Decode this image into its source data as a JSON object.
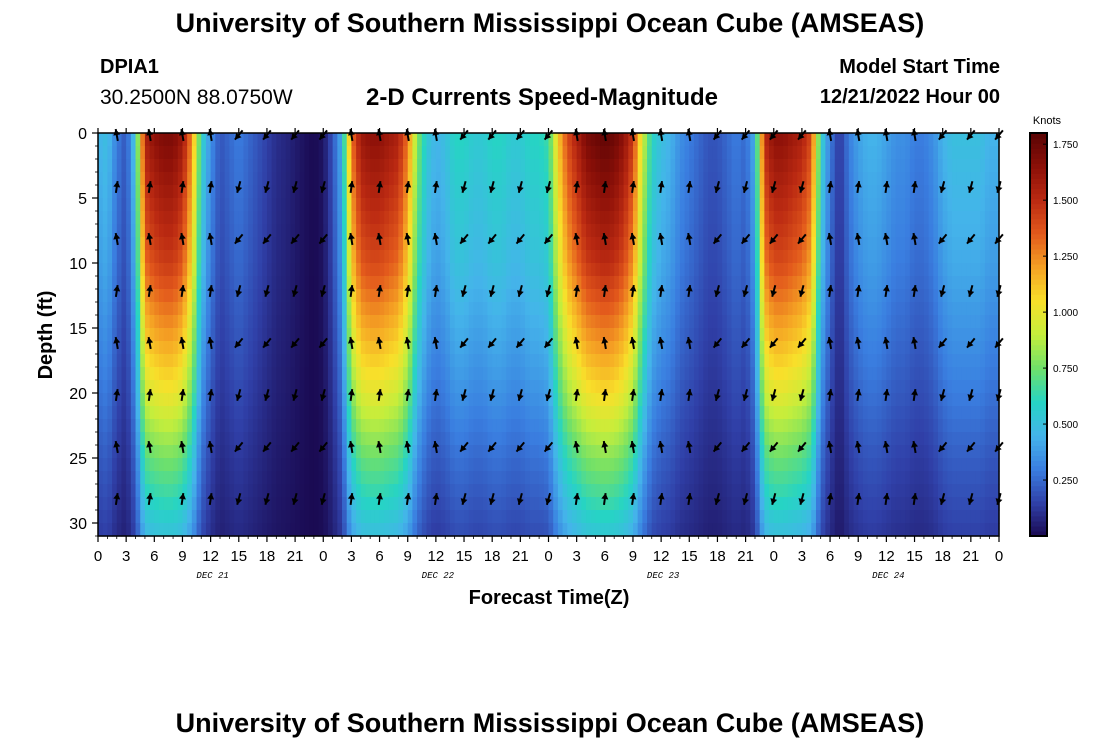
{
  "header": {
    "title": "University of Southern Mississippi Ocean Cube (AMSEAS)",
    "station_id": "DPIA1",
    "coordinates": "30.2500N  88.0750W",
    "plot_title": "2-D Currents Speed-Magnitude",
    "model_start_label": "Model Start Time",
    "model_start_value": "12/21/2022 Hour 00"
  },
  "footer": {
    "title": "University of Southern Mississippi Ocean Cube (AMSEAS)"
  },
  "chart_data": {
    "type": "heatmap",
    "title": "2-D Currents Speed-Magnitude",
    "xlabel": "Forecast Time(Z)",
    "ylabel": "Depth (ft)",
    "xlim": [
      0,
      96
    ],
    "ylim": [
      31,
      0
    ],
    "x_tick_values": [
      0,
      3,
      6,
      9,
      12,
      15,
      18,
      21,
      24,
      27,
      30,
      33,
      36,
      39,
      42,
      45,
      48,
      51,
      54,
      57,
      60,
      63,
      66,
      69,
      72,
      75,
      78,
      81,
      84,
      87,
      90,
      93,
      96
    ],
    "x_tick_labels": [
      "0",
      "3",
      "6",
      "9",
      "12",
      "15",
      "18",
      "21",
      "0",
      "3",
      "6",
      "9",
      "12",
      "15",
      "18",
      "21",
      "0",
      "3",
      "6",
      "9",
      "12",
      "15",
      "18",
      "21",
      "0",
      "3",
      "6",
      "9",
      "12",
      "15",
      "18",
      "21",
      "0"
    ],
    "y_ticks": [
      0,
      5,
      10,
      15,
      20,
      25,
      30
    ],
    "date_labels": [
      {
        "hour": 12,
        "label": "DEC 21"
      },
      {
        "hour": 36,
        "label": "DEC 22"
      },
      {
        "hour": 60,
        "label": "DEC 23"
      },
      {
        "hour": 84,
        "label": "DEC 24"
      }
    ],
    "colorbar": {
      "unit": "Knots",
      "min": 0,
      "max": 1.8,
      "ticks": [
        1.75,
        1.5,
        1.25,
        1.0,
        0.75,
        0.5,
        0.25
      ],
      "tick_labels": [
        "1.750",
        "1.500",
        "1.250",
        "1.000",
        "0.750",
        "0.500",
        "0.250"
      ]
    },
    "vector_hours": [
      2,
      5.5,
      9,
      12,
      15,
      18,
      21,
      24,
      27,
      30,
      33,
      36,
      39,
      42,
      45,
      48,
      51,
      54,
      57,
      60,
      63,
      66,
      69,
      72,
      75,
      78,
      81,
      84,
      87,
      90,
      93,
      96
    ],
    "vector_depths": [
      0,
      4,
      8,
      12,
      16,
      20,
      24,
      28
    ],
    "surface_speed_profile": [
      [
        0,
        0.45
      ],
      [
        1,
        0.5
      ],
      [
        2,
        0.3
      ],
      [
        3,
        0.2
      ],
      [
        4,
        0.55
      ],
      [
        5,
        1.55
      ],
      [
        6,
        1.65
      ],
      [
        7,
        1.7
      ],
      [
        8,
        1.7
      ],
      [
        9,
        1.6
      ],
      [
        10,
        1.25
      ],
      [
        11,
        0.6
      ],
      [
        12,
        0.35
      ],
      [
        13,
        0.2
      ],
      [
        14,
        0.25
      ],
      [
        15,
        0.3
      ],
      [
        16,
        0.25
      ],
      [
        17,
        0.2
      ],
      [
        18,
        0.15
      ],
      [
        19,
        0.1
      ],
      [
        20,
        0.08
      ],
      [
        21,
        0.05
      ],
      [
        22,
        0.02
      ],
      [
        23,
        0.0
      ],
      [
        24,
        0.03
      ],
      [
        25,
        0.2
      ],
      [
        26,
        0.45
      ],
      [
        27,
        1.3
      ],
      [
        28,
        1.6
      ],
      [
        29,
        1.65
      ],
      [
        30,
        1.65
      ],
      [
        31,
        1.6
      ],
      [
        32,
        1.55
      ],
      [
        33,
        1.3
      ],
      [
        34,
        0.8
      ],
      [
        35,
        0.55
      ],
      [
        36,
        0.45
      ],
      [
        37,
        0.5
      ],
      [
        38,
        0.6
      ],
      [
        39,
        0.6
      ],
      [
        40,
        0.55
      ],
      [
        41,
        0.55
      ],
      [
        42,
        0.6
      ],
      [
        43,
        0.6
      ],
      [
        44,
        0.55
      ],
      [
        45,
        0.55
      ],
      [
        46,
        0.6
      ],
      [
        47,
        0.6
      ],
      [
        48,
        0.65
      ],
      [
        49,
        1.1
      ],
      [
        50,
        1.4
      ],
      [
        51,
        1.55
      ],
      [
        52,
        1.7
      ],
      [
        53,
        1.75
      ],
      [
        54,
        1.78
      ],
      [
        55,
        1.75
      ],
      [
        56,
        1.65
      ],
      [
        57,
        1.45
      ],
      [
        58,
        0.95
      ],
      [
        59,
        0.6
      ],
      [
        60,
        0.5
      ],
      [
        61,
        0.45
      ],
      [
        62,
        0.35
      ],
      [
        63,
        0.3
      ],
      [
        64,
        0.25
      ],
      [
        65,
        0.2
      ],
      [
        66,
        0.2
      ],
      [
        67,
        0.25
      ],
      [
        68,
        0.3
      ],
      [
        69,
        0.25
      ],
      [
        70,
        0.45
      ],
      [
        71,
        1.5
      ],
      [
        72,
        1.65
      ],
      [
        73,
        1.65
      ],
      [
        74,
        1.6
      ],
      [
        75,
        1.55
      ],
      [
        76,
        1.4
      ],
      [
        77,
        0.6
      ],
      [
        78,
        0.3
      ],
      [
        79,
        0.12
      ],
      [
        80,
        0.3
      ],
      [
        81,
        0.4
      ],
      [
        82,
        0.45
      ],
      [
        83,
        0.45
      ],
      [
        84,
        0.4
      ],
      [
        85,
        0.35
      ],
      [
        86,
        0.35
      ],
      [
        87,
        0.3
      ],
      [
        88,
        0.3
      ],
      [
        89,
        0.35
      ],
      [
        90,
        0.45
      ],
      [
        91,
        0.5
      ],
      [
        92,
        0.5
      ],
      [
        93,
        0.5
      ],
      [
        94,
        0.5
      ],
      [
        95,
        0.45
      ],
      [
        96,
        0.45
      ]
    ],
    "depth_decay": [
      [
        0,
        1.0
      ],
      [
        10,
        0.85
      ],
      [
        20,
        0.6
      ],
      [
        25,
        0.45
      ],
      [
        31,
        0.3
      ]
    ],
    "colors": {
      "background": "#ffffff",
      "arrow": "#000000",
      "colormap": [
        "#1a0a52",
        "#3040a8",
        "#3a7ee0",
        "#44b4ea",
        "#26d4c4",
        "#6fe06a",
        "#c4ee3c",
        "#f8e02a",
        "#f5a224",
        "#e35a1c",
        "#bb2a12",
        "#8c1008",
        "#5a0404"
      ]
    }
  }
}
